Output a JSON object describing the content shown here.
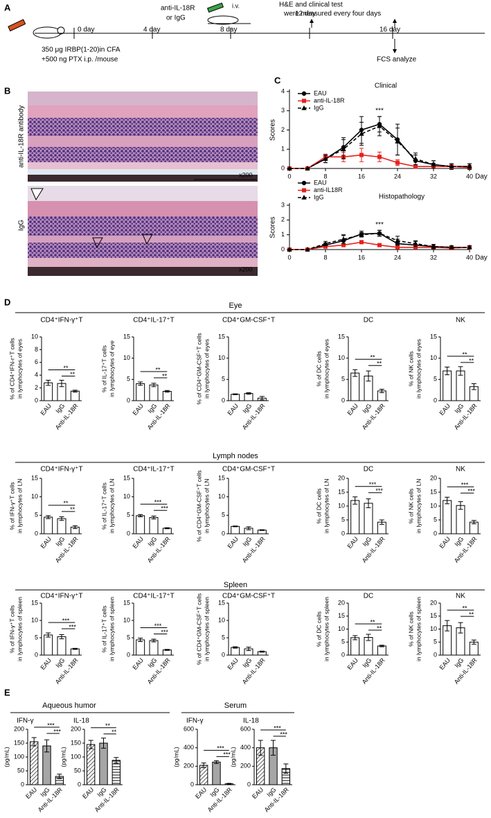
{
  "panel_labels": [
    "A",
    "B",
    "C",
    "D",
    "E"
  ],
  "timeline": {
    "days": [
      "0 day",
      "4 day",
      "8 day",
      "12 day",
      "16 day"
    ],
    "injection": [
      "anti-IL-18R",
      "or IgG"
    ],
    "route": "i.v.",
    "measure": [
      "H&E and clinical test",
      "were measured every four days"
    ],
    "analysis": "FCS analyze",
    "immunization": [
      "350 μg IRBP(1-20)in CFA",
      "+500 ng PTX i.p. /mouse"
    ]
  },
  "histology": {
    "top_label": "anti-IL-18R antibody",
    "bottom_label": "IgG",
    "magnification": [
      "x200",
      "x200"
    ]
  },
  "panel_d": {
    "rows": [
      "Eye",
      "Lymph nodes",
      "Spleen"
    ]
  },
  "panel_e": {
    "groups": [
      "Aqueous humor",
      "Serum"
    ]
  },
  "chart_data": [
    {
      "type": "line",
      "title": "Clinical",
      "ylabel": "Scores",
      "xlabel": "Day",
      "annotation": "***",
      "x": [
        0,
        4,
        8,
        12,
        16,
        20,
        24,
        28,
        32,
        36,
        40
      ],
      "xlim": [
        0,
        40
      ],
      "xticks": [
        0,
        8,
        16,
        24,
        32,
        40
      ],
      "ylim": [
        0,
        4
      ],
      "yticks": [
        0,
        1,
        2,
        3,
        4
      ],
      "series": [
        {
          "name": "EAU",
          "color": "#000000",
          "marker": "circle",
          "dashed": false,
          "values": [
            0,
            0,
            0.5,
            1.1,
            2.0,
            2.3,
            1.5,
            0.4,
            0.2,
            0.1,
            0.1
          ],
          "errors": [
            0,
            0,
            0.2,
            0.5,
            0.7,
            0.4,
            0.8,
            0.3,
            0.2,
            0.15,
            0.15
          ]
        },
        {
          "name": "anti-IL-18R",
          "color": "#e8201c",
          "marker": "square",
          "dashed": false,
          "values": [
            0,
            0,
            0.6,
            0.6,
            0.7,
            0.6,
            0.3,
            0.1,
            0.1,
            0.1,
            0.05
          ],
          "errors": [
            0,
            0,
            0.15,
            0.25,
            0.35,
            0.25,
            0.15,
            0.1,
            0.1,
            0.1,
            0.05
          ]
        },
        {
          "name": "IgG",
          "color": "#000000",
          "marker": "triangle",
          "dashed": true,
          "values": [
            0,
            0,
            0.5,
            1.0,
            1.8,
            2.2,
            1.4,
            0.5,
            0.2,
            0.1,
            0.1
          ],
          "errors": [
            0,
            0,
            0.2,
            0.5,
            0.6,
            0.5,
            0.7,
            0.3,
            0.2,
            0.15,
            0.15
          ]
        }
      ]
    },
    {
      "type": "line",
      "title": "Histopathology",
      "ylabel": "Scores",
      "xlabel": "Day",
      "annotation": "***",
      "x": [
        0,
        4,
        8,
        12,
        16,
        20,
        24,
        28,
        32,
        36,
        40
      ],
      "xlim": [
        0,
        40
      ],
      "xticks": [
        0,
        8,
        16,
        24,
        32,
        40
      ],
      "ylim": [
        0,
        3
      ],
      "yticks": [
        0,
        1,
        2,
        3
      ],
      "series": [
        {
          "name": "EAU",
          "color": "#000000",
          "marker": "circle",
          "dashed": false,
          "values": [
            0,
            0,
            0.3,
            0.6,
            1.05,
            1.1,
            0.4,
            0.3,
            0.2,
            0.15,
            0.15
          ],
          "errors": [
            0,
            0,
            0.15,
            0.35,
            0.2,
            0.2,
            0.3,
            0.25,
            0.15,
            0.1,
            0.1
          ]
        },
        {
          "name": "anti-IL18R",
          "color": "#e8201c",
          "marker": "square",
          "dashed": false,
          "values": [
            0,
            0,
            0.2,
            0.3,
            0.5,
            0.3,
            0.15,
            0.15,
            0.15,
            0.1,
            0.15
          ],
          "errors": [
            0,
            0,
            0.1,
            0.1,
            0.1,
            0.1,
            0.05,
            0.05,
            0.05,
            0.05,
            0.05
          ]
        },
        {
          "name": "IgG",
          "color": "#000000",
          "marker": "triangle",
          "dashed": true,
          "values": [
            0,
            0,
            0.4,
            0.7,
            1.0,
            1.1,
            0.6,
            0.4,
            0.2,
            0.15,
            0.15
          ],
          "errors": [
            0,
            0,
            0.15,
            0.3,
            0.15,
            0.2,
            0.3,
            0.2,
            0.15,
            0.1,
            0.1
          ]
        }
      ]
    },
    {
      "type": "bar",
      "title": "CD4⁺IFN-γ⁺T",
      "ylabel": [
        "% of CD4⁺IFN-r⁺T cells",
        "in lymphocytes of eyes"
      ],
      "categories": [
        "EAU",
        "IgG",
        "Anti-IL-18R"
      ],
      "values": [
        2.8,
        2.7,
        1.5
      ],
      "errors": [
        0.4,
        0.5,
        0.15
      ],
      "ylim": [
        0,
        10
      ],
      "yticks": [
        0,
        2,
        4,
        6,
        8,
        10
      ],
      "significance": [
        "**",
        "**"
      ],
      "color": "#ffffff"
    },
    {
      "type": "bar",
      "title": "CD4⁺IL-17⁺T",
      "ylabel": [
        "% of IL-17⁺T cells",
        "in lymphocytes of eye"
      ],
      "categories": [
        "EAU",
        "IgG",
        "Anti-IL-18R"
      ],
      "values": [
        4.0,
        3.7,
        2.2
      ],
      "errors": [
        0.4,
        0.4,
        0.2
      ],
      "ylim": [
        0,
        15
      ],
      "yticks": [
        0,
        5,
        10,
        15
      ],
      "significance": [
        "**",
        "**"
      ],
      "color": "#ffffff"
    },
    {
      "type": "bar",
      "title": "CD4⁺GM-CSF⁺T",
      "ylabel": [
        "% of CD4⁺GM-CSF⁺T cells",
        "in lymphocytes of eyes"
      ],
      "categories": [
        "EAU",
        "IgG",
        "Anti-IL-18R"
      ],
      "values": [
        1.5,
        1.7,
        0.6
      ],
      "errors": [
        0.1,
        0.2,
        0.4
      ],
      "ylim": [
        0,
        15
      ],
      "yticks": [
        0,
        5,
        10,
        15
      ],
      "color": "#ffffff"
    },
    {
      "type": "bar",
      "title": "DC",
      "ylabel": [
        "% of DC cells",
        "in lymphocytes of eyes"
      ],
      "categories": [
        "EAU",
        "IgG",
        "Anti-IL-18R"
      ],
      "values": [
        6.5,
        5.8,
        2.3
      ],
      "errors": [
        0.8,
        1.2,
        0.4
      ],
      "ylim": [
        0,
        15
      ],
      "yticks": [
        0,
        5,
        10,
        15
      ],
      "significance": [
        "**",
        "**"
      ],
      "color": "#ffffff"
    },
    {
      "type": "bar",
      "title": "NK",
      "ylabel": [
        "% of NK cells",
        "in lymphocytes of eyes"
      ],
      "categories": [
        "EAU",
        "IgG",
        "Anti-IL-18R"
      ],
      "values": [
        7.0,
        7.0,
        3.3
      ],
      "errors": [
        0.9,
        1.0,
        0.7
      ],
      "ylim": [
        0,
        15
      ],
      "yticks": [
        0,
        5,
        10,
        15
      ],
      "significance": [
        "**",
        "**"
      ],
      "color": "#ffffff"
    },
    {
      "type": "bar",
      "title": "CD4⁺IFN-γ⁺T",
      "ylabel": [
        "% of IFN-γ⁺T cells",
        "in lymphocytes of LN"
      ],
      "categories": [
        "EAU",
        "IgG",
        "Anti-IL-18R"
      ],
      "values": [
        4.5,
        4.1,
        1.8
      ],
      "errors": [
        0.4,
        0.5,
        0.4
      ],
      "ylim": [
        0,
        15
      ],
      "yticks": [
        0,
        5,
        10,
        15
      ],
      "significance": [
        "**",
        "**"
      ],
      "color": "#ffffff"
    },
    {
      "type": "bar",
      "title": "CD4⁺IL-17⁺T",
      "ylabel": [
        "% of IL-17⁺T cells",
        "in lymphocytes of LN"
      ],
      "categories": [
        "EAU",
        "IgG",
        "Anti-IL-18R"
      ],
      "values": [
        4.9,
        4.4,
        1.5
      ],
      "errors": [
        0.3,
        0.4,
        0.15
      ],
      "ylim": [
        0,
        15
      ],
      "yticks": [
        0,
        5,
        10,
        15
      ],
      "significance": [
        "***",
        "***"
      ],
      "color": "#ffffff"
    },
    {
      "type": "bar",
      "title": "CD4⁺GM-CSF⁺T",
      "ylabel": [
        "% of CD4⁺GM-CSF⁺T cells",
        "in lymphocytes of LN"
      ],
      "categories": [
        "EAU",
        "IgG",
        "Anti-IL-18R"
      ],
      "values": [
        2.0,
        1.5,
        1.0
      ],
      "errors": [
        0.1,
        0.4,
        0.1
      ],
      "ylim": [
        0,
        15
      ],
      "yticks": [
        0,
        5,
        10,
        15
      ],
      "color": "#ffffff"
    },
    {
      "type": "bar",
      "title": "DC",
      "ylabel": [
        "% of DC cells",
        "in lymphocytes of LN"
      ],
      "categories": [
        "EAU",
        "IgG",
        "Anti-IL-18R"
      ],
      "values": [
        12,
        11,
        4.2
      ],
      "errors": [
        1.3,
        1.6,
        0.8
      ],
      "ylim": [
        0,
        20
      ],
      "yticks": [
        0,
        5,
        10,
        15,
        20
      ],
      "significance": [
        "***",
        "***"
      ],
      "color": "#ffffff"
    },
    {
      "type": "bar",
      "title": "NK",
      "ylabel": [
        "% of NK cells",
        "in lymphocytes of LN"
      ],
      "categories": [
        "EAU",
        "IgG",
        "Anti-IL-18R"
      ],
      "values": [
        12,
        10.2,
        4.2
      ],
      "errors": [
        1.2,
        1.4,
        0.6
      ],
      "ylim": [
        0,
        20
      ],
      "yticks": [
        0,
        5,
        10,
        15,
        20
      ],
      "significance": [
        "***",
        "***"
      ],
      "color": "#ffffff"
    },
    {
      "type": "bar",
      "title": "CD4⁺IFN-γ⁺T",
      "ylabel": [
        "% of IFN-γ⁺T cells",
        "in lymphocytes of spleen"
      ],
      "categories": [
        "EAU",
        "IgG",
        "Anti-IL-18R"
      ],
      "values": [
        5.8,
        5.3,
        1.8
      ],
      "errors": [
        0.6,
        0.6,
        0.15
      ],
      "ylim": [
        0,
        15
      ],
      "yticks": [
        0,
        5,
        10,
        15
      ],
      "significance": [
        "***",
        "***"
      ],
      "color": "#ffffff"
    },
    {
      "type": "bar",
      "title": "CD4⁺IL-17⁺T",
      "ylabel": [
        "% of IL-17⁺T cells",
        "in lymphocytes of spleen"
      ],
      "categories": [
        "EAU",
        "IgG",
        "Anti-IL-18R"
      ],
      "values": [
        4.4,
        4.2,
        1.5
      ],
      "errors": [
        0.5,
        0.4,
        0.15
      ],
      "ylim": [
        0,
        15
      ],
      "yticks": [
        0,
        5,
        10,
        15
      ],
      "significance": [
        "***",
        "***"
      ],
      "color": "#ffffff"
    },
    {
      "type": "bar",
      "title": "CD4⁺GM-CSF⁺T",
      "ylabel": [
        "% of CD4⁺GM-CSF⁺T cells",
        "in lymphocytes of spleen"
      ],
      "categories": [
        "EAU",
        "IgG",
        "Anti-IL-18R"
      ],
      "values": [
        2.2,
        1.8,
        1.0
      ],
      "errors": [
        0.2,
        0.5,
        0.15
      ],
      "ylim": [
        0,
        15
      ],
      "yticks": [
        0,
        5,
        10,
        15
      ],
      "color": "#ffffff"
    },
    {
      "type": "bar",
      "title": "DC",
      "ylabel": [
        "% of DC cells",
        "in lymphocytes of spleen"
      ],
      "categories": [
        "EAU",
        "IgG",
        "Anti-IL-18R"
      ],
      "values": [
        6.7,
        6.8,
        3.5
      ],
      "errors": [
        0.8,
        1.2,
        0.3
      ],
      "ylim": [
        0,
        20
      ],
      "yticks": [
        0,
        5,
        10,
        15,
        20
      ],
      "significance": [
        "**",
        "**"
      ],
      "color": "#ffffff"
    },
    {
      "type": "bar",
      "title": "NK",
      "ylabel": [
        "% of NK cells",
        "in lymphocytes of spleen"
      ],
      "categories": [
        "EAU",
        "IgG",
        "Anti-IL-18R"
      ],
      "values": [
        11.3,
        10.5,
        5.0
      ],
      "errors": [
        2.0,
        2.0,
        0.8
      ],
      "ylim": [
        0,
        20
      ],
      "yticks": [
        0,
        5,
        10,
        15,
        20
      ],
      "significance": [
        "**",
        "**"
      ],
      "color": "#ffffff"
    },
    {
      "type": "bar",
      "title": "IFN-γ",
      "ylabel": "(pg/mL)",
      "categories": [
        "EAU",
        "IgG",
        "Anti-IL-18R"
      ],
      "values": [
        155,
        140,
        30
      ],
      "errors": [
        15,
        22,
        8
      ],
      "ylim": [
        0,
        200
      ],
      "yticks": [
        0,
        50,
        100,
        150,
        200
      ],
      "significance": [
        "***",
        "***"
      ],
      "color": "#a6a6a6",
      "patterns": [
        "diagonal",
        "solid",
        "horizontal"
      ]
    },
    {
      "type": "bar",
      "title": "IL-18",
      "ylabel": "(pg/mL)",
      "categories": [
        "EAU",
        "IgG",
        "Anti-IL-18R"
      ],
      "values": [
        145,
        150,
        88
      ],
      "errors": [
        15,
        18,
        10
      ],
      "ylim": [
        0,
        200
      ],
      "yticks": [
        0,
        50,
        100,
        150,
        200
      ],
      "significance": [
        "**",
        "**"
      ],
      "color": "#a6a6a6",
      "patterns": [
        "diagonal",
        "solid",
        "horizontal"
      ]
    },
    {
      "type": "bar",
      "title": "IFN-γ",
      "ylabel": "(pg/mL)",
      "categories": [
        "EAU",
        "IgG",
        "Anti-IL-18R"
      ],
      "values": [
        210,
        245,
        10
      ],
      "errors": [
        25,
        15,
        5
      ],
      "ylim": [
        0,
        600
      ],
      "yticks": [
        0,
        200,
        400,
        600
      ],
      "significance": [
        "***",
        "***"
      ],
      "color": "#a6a6a6",
      "patterns": [
        "diagonal",
        "solid",
        "horizontal"
      ]
    },
    {
      "type": "bar",
      "title": "IL-18",
      "ylabel": "(pg/mL)",
      "categories": [
        "EAU",
        "IgG",
        "Anti-IL-18R"
      ],
      "values": [
        400,
        400,
        175
      ],
      "errors": [
        80,
        80,
        50
      ],
      "ylim": [
        0,
        600
      ],
      "yticks": [
        0,
        200,
        400,
        600
      ],
      "significance": [
        "***",
        "***"
      ],
      "color": "#a6a6a6",
      "patterns": [
        "diagonal",
        "solid",
        "horizontal"
      ]
    }
  ]
}
